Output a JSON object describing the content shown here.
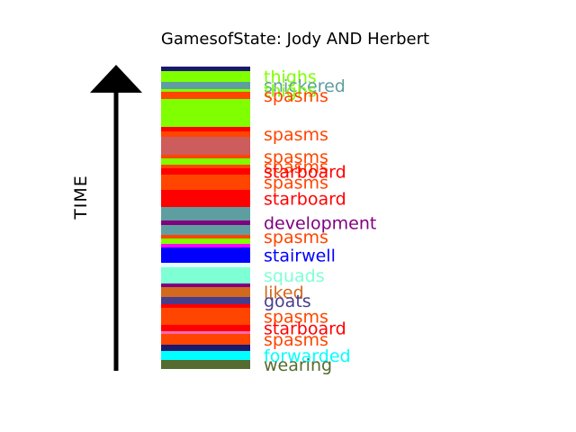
{
  "chart_data": {
    "type": "bar",
    "orientation": "stacked-vertical-timeline",
    "title": "GamesofState: Jody AND Herbert",
    "ylabel": "TIME",
    "segments": [
      {
        "color": "#191970",
        "t": 0.0,
        "label": ""
      },
      {
        "color": "#7fff00",
        "t": 0.0,
        "label": "thighs"
      },
      {
        "color": "#5f9ea0",
        "t": 0.0,
        "label": "snickered"
      },
      {
        "color": "#7fff00",
        "t": 0.0,
        "label": "thighs"
      },
      {
        "color": "#ff4500",
        "t": 0.0,
        "label": "spasms"
      },
      {
        "color": "#7fff00",
        "t": 0.0,
        "label": ""
      },
      {
        "color": "#ff0000",
        "t": 0.0,
        "label": ""
      },
      {
        "color": "#ff4500",
        "t": 0.0,
        "label": "spasms"
      },
      {
        "color": "#cd5c5c",
        "t": 0.0,
        "label": ""
      },
      {
        "color": "#ff4500",
        "t": 0.0,
        "label": "spasms"
      },
      {
        "color": "#7fff00",
        "t": 0.0,
        "label": ""
      },
      {
        "color": "#ff4500",
        "t": 0.0,
        "label": "spasms"
      },
      {
        "color": "#ff0000",
        "t": 0.0,
        "label": "starboard"
      },
      {
        "color": "#ff4500",
        "t": 0.0,
        "label": "spasms"
      },
      {
        "color": "#ff0000",
        "t": 0.0,
        "label": "starboard"
      },
      {
        "color": "#5f9ea0",
        "t": 0.0,
        "label": ""
      },
      {
        "color": "#800080",
        "t": 0.0,
        "label": "development"
      },
      {
        "color": "#5f9ea0",
        "t": 0.0,
        "label": ""
      },
      {
        "color": "#ff4500",
        "t": 0.0,
        "label": "spasms"
      },
      {
        "color": "#7fff00",
        "t": 0.0,
        "label": ""
      },
      {
        "color": "#ff00ff",
        "t": 0.0,
        "label": ""
      },
      {
        "color": "#0000ff",
        "t": 0.0,
        "label": "stairwell"
      },
      {
        "color": "#e0ffff",
        "t": 0.0,
        "label": ""
      },
      {
        "color": "#7fffd4",
        "t": 0.0,
        "label": "squads"
      },
      {
        "color": "#800080",
        "t": 0.0,
        "label": ""
      },
      {
        "color": "#d2691e",
        "t": 0.0,
        "label": "liked"
      },
      {
        "color": "#483d8b",
        "t": 0.0,
        "label": "goats"
      },
      {
        "color": "#ff0000",
        "t": 0.0,
        "label": ""
      },
      {
        "color": "#ff4500",
        "t": 0.0,
        "label": "spasms"
      },
      {
        "color": "#ff0000",
        "t": 0.0,
        "label": "starboard"
      },
      {
        "color": "#ff69b4",
        "t": 0.0,
        "label": ""
      },
      {
        "color": "#ff4500",
        "t": 0.0,
        "label": "spasms"
      },
      {
        "color": "#191970",
        "t": 0.0,
        "label": ""
      },
      {
        "color": "#00ffff",
        "t": 0.0,
        "label": "forwarded"
      },
      {
        "color": "#556b2f",
        "t": 0.0,
        "label": "wearing"
      }
    ]
  }
}
